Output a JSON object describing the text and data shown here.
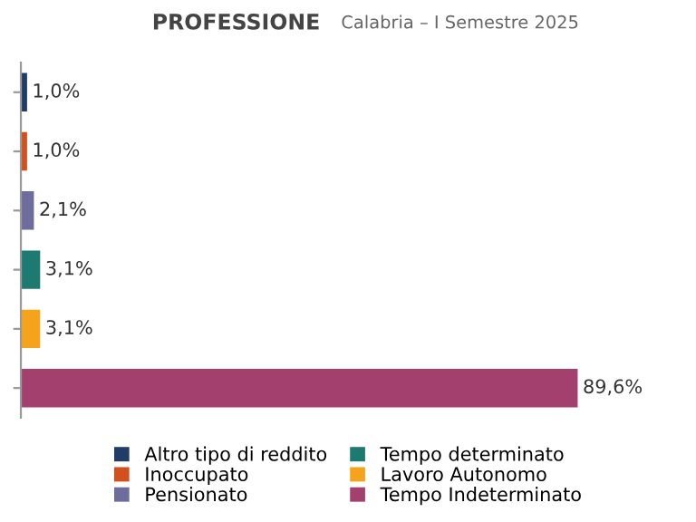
{
  "chart_data": {
    "type": "bar",
    "orientation": "horizontal",
    "stacked": true,
    "title": "PROFESSIONE",
    "subtitle": "Calabria – I Semestre 2025",
    "categories": [
      null,
      null,
      null,
      null,
      null,
      null
    ],
    "series": [
      {
        "name": "Altro tipo di reddito",
        "color": "#1f3d66",
        "values": [
          1.0,
          null,
          null,
          null,
          null,
          null
        ],
        "value_labels": [
          "1,0%",
          null,
          null,
          null,
          null,
          null
        ]
      },
      {
        "name": "Inoccupato",
        "color": "#d2501e",
        "values": [
          null,
          1.0,
          null,
          null,
          null,
          null
        ],
        "value_labels": [
          null,
          "1,0%",
          null,
          null,
          null,
          null
        ]
      },
      {
        "name": "Pensionato",
        "color": "#6e6c9c",
        "values": [
          null,
          null,
          2.1,
          null,
          null,
          null
        ],
        "value_labels": [
          null,
          null,
          "2,1%",
          null,
          null,
          null
        ]
      },
      {
        "name": "Tempo determinato",
        "color": "#1d7a70",
        "values": [
          null,
          null,
          null,
          3.1,
          null,
          null
        ],
        "value_labels": [
          null,
          null,
          null,
          "3,1%",
          null,
          null
        ]
      },
      {
        "name": "Lavoro Autonomo",
        "color": "#f5a31a",
        "values": [
          null,
          null,
          null,
          null,
          3.1,
          null
        ],
        "value_labels": [
          null,
          null,
          null,
          null,
          "3,1%",
          null
        ]
      },
      {
        "name": "Tempo Indeterminato",
        "color": "#a3406e",
        "values": [
          null,
          null,
          null,
          null,
          null,
          89.6
        ],
        "value_labels": [
          null,
          null,
          null,
          null,
          null,
          "89,6%"
        ]
      }
    ],
    "grid": false,
    "legend": "bottom"
  }
}
